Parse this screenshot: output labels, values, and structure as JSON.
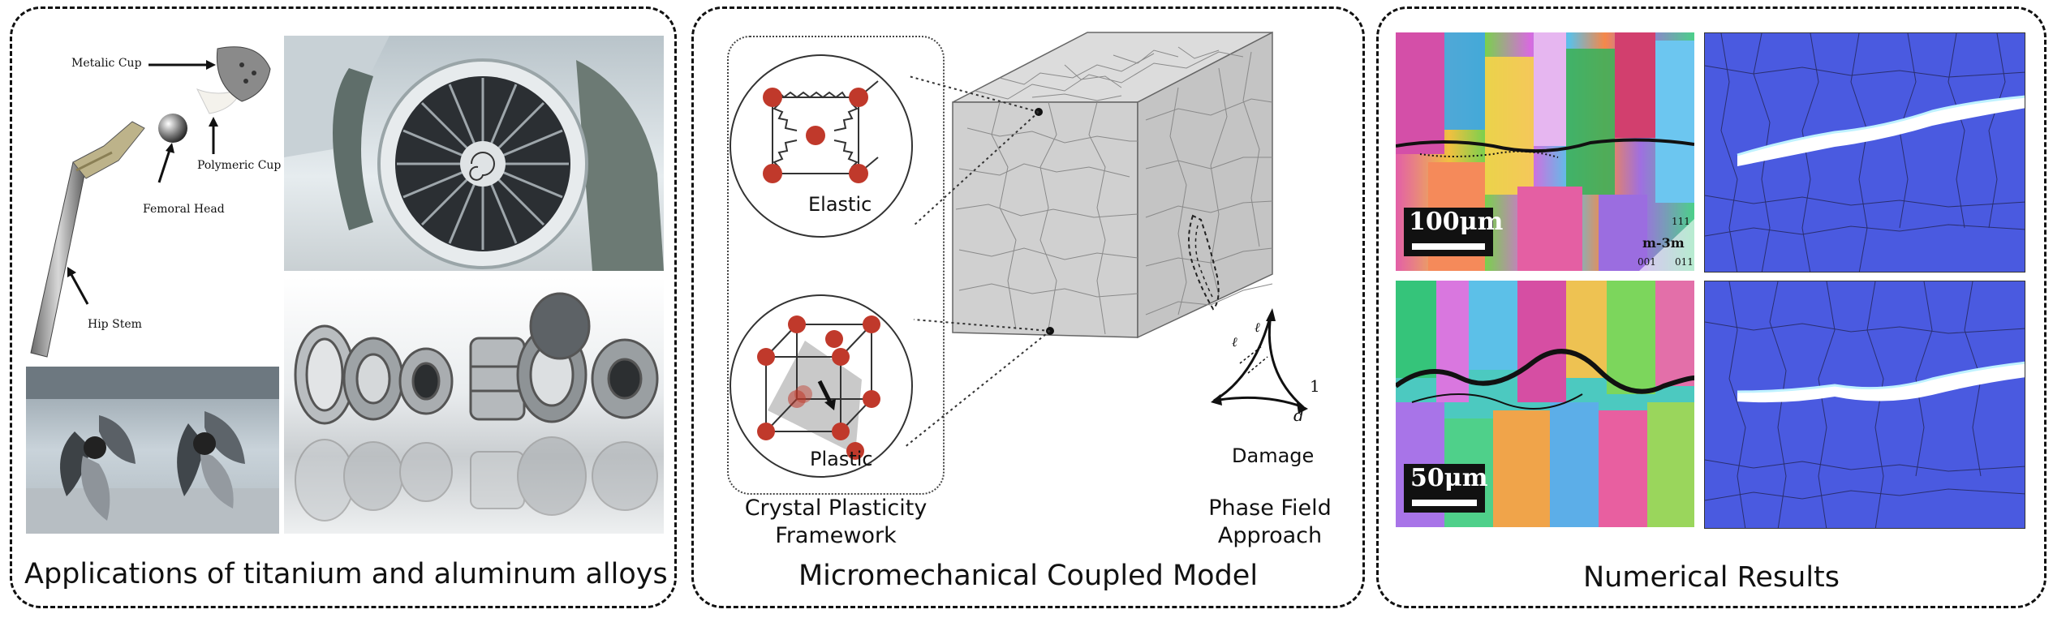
{
  "panels": {
    "applications": {
      "title": "Applications of titanium and aluminum alloys",
      "hip_labels": {
        "metallic_cup": "Metalic Cup",
        "polymeric_cup": "Polymeric Cup",
        "femoral_head": "Femoral Head",
        "hip_stem": "Hip Stem"
      }
    },
    "model": {
      "title": "Micromechanical Coupled Model",
      "elastic": "Elastic",
      "plastic": "Plastic",
      "crystal_plasticity_line1": "Crystal Plasticity",
      "crystal_plasticity_line2": "Framework",
      "damage": "Damage",
      "phase_field_line1": "Phase Field",
      "phase_field_line2": "Approach",
      "axis_one": "1",
      "axis_d": "d",
      "axis_l1": "ℓ",
      "axis_l2": "ℓ"
    },
    "results": {
      "title": "Numerical Results",
      "scale_top": "100μm",
      "scale_bottom": "50μm",
      "ipf_legend": "m-3m",
      "ipf_111": "111",
      "ipf_001": "001",
      "ipf_011": "011"
    }
  },
  "colors": {
    "atom": "#c0392b",
    "crack": "#ffffff",
    "sim_background": "#4a5ae0"
  }
}
